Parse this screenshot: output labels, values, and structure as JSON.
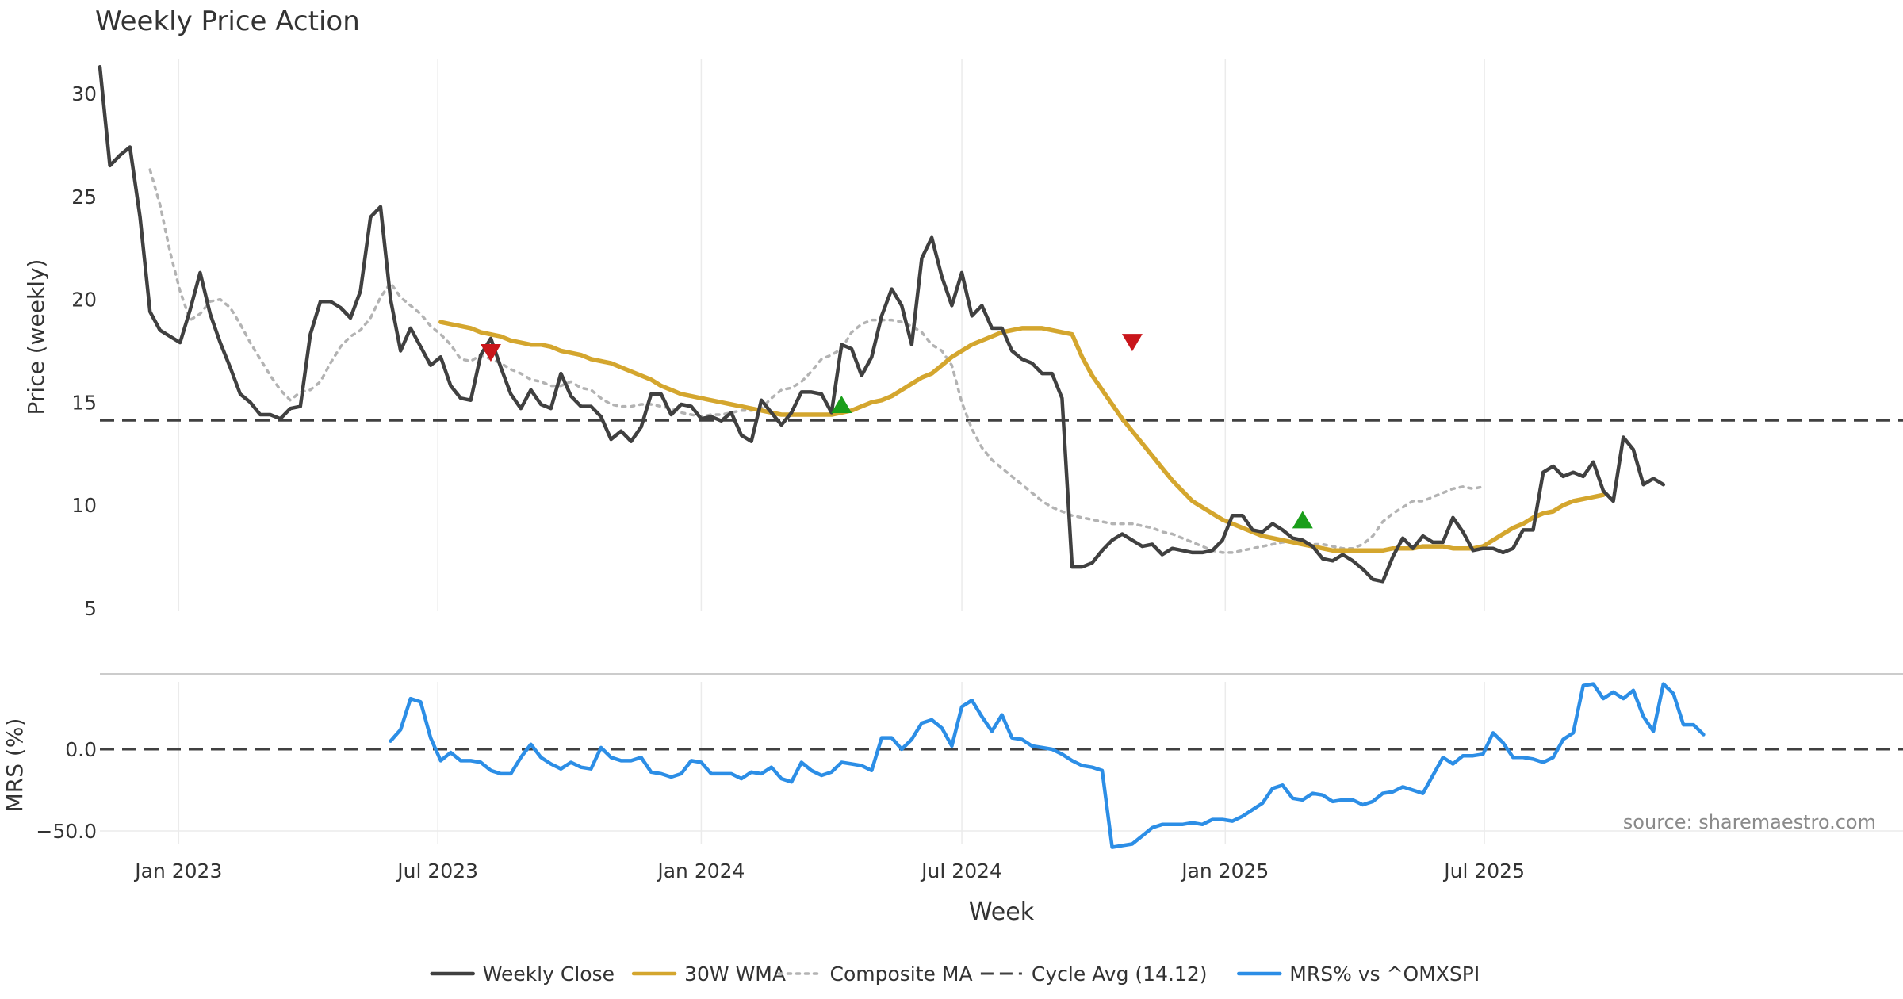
{
  "chart_data": [
    {
      "type": "line",
      "title": "Weekly Price Action",
      "xlabel": "",
      "ylabel": "Price (weekly)",
      "ylim": [
        5,
        32
      ],
      "yticks": [
        5,
        10,
        15,
        20,
        25,
        30
      ],
      "grid": "vertical",
      "x_start": "2022-11-07",
      "x_step_weeks": 1,
      "series": [
        {
          "name": "Weekly Close",
          "color": "#404040",
          "style": "solid",
          "values": [
            31.3,
            26.5,
            27.0,
            27.4,
            24.0,
            19.4,
            18.5,
            18.2,
            17.9,
            19.5,
            21.3,
            19.3,
            17.9,
            16.7,
            15.4,
            15.0,
            14.4,
            14.4,
            14.2,
            14.7,
            14.8,
            18.3,
            19.9,
            19.9,
            19.6,
            19.1,
            20.4,
            24.0,
            24.5,
            20.0,
            17.5,
            18.6,
            17.7,
            16.8,
            17.2,
            15.8,
            15.2,
            15.1,
            17.3,
            18.1,
            16.7,
            15.4,
            14.7,
            15.6,
            14.9,
            14.7,
            16.4,
            15.3,
            14.8,
            14.8,
            14.3,
            13.2,
            13.6,
            13.1,
            13.8,
            15.4,
            15.4,
            14.4,
            14.9,
            14.8,
            14.2,
            14.3,
            14.1,
            14.5,
            13.4,
            13.1,
            15.1,
            14.5,
            13.9,
            14.5,
            15.5,
            15.5,
            15.4,
            14.5,
            17.8,
            17.6,
            16.3,
            17.2,
            19.2,
            20.5,
            19.7,
            17.8,
            22.0,
            23.0,
            21.1,
            19.7,
            21.3,
            19.2,
            19.7,
            18.6,
            18.6,
            17.5,
            17.1,
            16.9,
            16.4,
            16.4,
            15.2,
            7.0,
            7.0,
            7.2,
            7.8,
            8.3,
            8.6,
            8.3,
            8.0,
            8.1,
            7.6,
            7.9,
            7.8,
            7.7,
            7.7,
            7.8,
            8.3,
            9.5,
            9.5,
            8.8,
            8.7,
            9.1,
            8.8,
            8.4,
            8.3,
            8.0,
            7.4,
            7.3,
            7.6,
            7.3,
            6.9,
            6.4,
            6.3,
            7.5,
            8.4,
            7.9,
            8.5,
            8.2,
            8.2,
            9.4,
            8.7,
            7.8,
            7.9,
            7.9,
            7.7,
            7.9,
            8.8,
            8.8,
            11.6,
            11.9,
            11.4,
            11.6,
            11.4,
            12.1,
            10.7,
            10.2,
            13.3,
            12.7,
            11.0,
            11.3,
            11.0
          ]
        },
        {
          "name": "30W WMA",
          "color": "#D4A62E",
          "style": "solid",
          "start_index": 34,
          "values": [
            18.9,
            18.8,
            18.7,
            18.6,
            18.4,
            18.3,
            18.2,
            18.0,
            17.9,
            17.8,
            17.8,
            17.7,
            17.5,
            17.4,
            17.3,
            17.1,
            17.0,
            16.9,
            16.7,
            16.5,
            16.3,
            16.1,
            15.8,
            15.6,
            15.4,
            15.3,
            15.2,
            15.1,
            15.0,
            14.9,
            14.8,
            14.7,
            14.6,
            14.5,
            14.4,
            14.4,
            14.4,
            14.4,
            14.4,
            14.4,
            14.5,
            14.6,
            14.8,
            15.0,
            15.1,
            15.3,
            15.6,
            15.9,
            16.2,
            16.4,
            16.8,
            17.2,
            17.5,
            17.8,
            18.0,
            18.2,
            18.4,
            18.5,
            18.6,
            18.6,
            18.6,
            18.5,
            18.4,
            18.3,
            17.2,
            16.3,
            15.6,
            14.9,
            14.2,
            13.6,
            13.0,
            12.4,
            11.8,
            11.2,
            10.7,
            10.2,
            9.9,
            9.6,
            9.3,
            9.1,
            8.9,
            8.7,
            8.5,
            8.4,
            8.3,
            8.2,
            8.1,
            8.0,
            7.9,
            7.8,
            7.8,
            7.8,
            7.8,
            7.8,
            7.8,
            7.9,
            7.9,
            7.9,
            8.0,
            8.0,
            8.0,
            7.9,
            7.9,
            7.9,
            8.0,
            8.3,
            8.6,
            8.9,
            9.1,
            9.4,
            9.6,
            9.7,
            10.0,
            10.2,
            10.3,
            10.4,
            10.5
          ]
        },
        {
          "name": "Composite MA",
          "color": "#B3B3B3",
          "style": "dotted",
          "start_index": 5,
          "values": [
            26.3,
            24.6,
            22.3,
            20.4,
            19.0,
            19.3,
            19.9,
            20.0,
            19.6,
            18.8,
            17.9,
            17.1,
            16.3,
            15.6,
            15.1,
            15.5,
            15.6,
            16.0,
            16.9,
            17.7,
            18.2,
            18.5,
            19.1,
            20.1,
            20.8,
            20.1,
            19.7,
            19.3,
            18.7,
            18.3,
            17.8,
            17.1,
            17.0,
            17.3,
            17.1,
            16.9,
            16.6,
            16.4,
            16.1,
            16.0,
            15.8,
            15.8,
            16.0,
            15.7,
            15.6,
            15.2,
            14.9,
            14.8,
            14.8,
            14.9,
            14.9,
            14.8,
            14.7,
            14.5,
            14.4,
            14.3,
            14.4,
            14.4,
            14.5,
            14.6,
            14.6,
            14.7,
            15.2,
            15.6,
            15.7,
            16.0,
            16.5,
            17.1,
            17.3,
            17.6,
            18.4,
            18.8,
            19.0,
            19.0,
            19.0,
            18.9,
            18.7,
            18.4,
            17.8,
            17.5,
            16.8,
            15.0,
            13.7,
            12.8,
            12.2,
            11.8,
            11.4,
            11.0,
            10.6,
            10.2,
            9.9,
            9.7,
            9.5,
            9.4,
            9.3,
            9.2,
            9.1,
            9.1,
            9.1,
            9.0,
            8.9,
            8.7,
            8.6,
            8.4,
            8.2,
            8.0,
            7.8,
            7.7,
            7.7,
            7.8,
            7.9,
            8.0,
            8.1,
            8.2,
            8.2,
            8.2,
            8.1,
            8.1,
            8.0,
            7.9,
            7.9,
            8.1,
            8.5,
            9.2,
            9.6,
            9.9,
            10.2,
            10.2,
            10.4,
            10.6,
            10.8,
            10.9,
            10.8,
            10.9
          ]
        },
        {
          "name": "Cycle Avg (14.12)",
          "color": "#404040",
          "style": "dashed",
          "constant": 14.12
        }
      ],
      "markers": [
        {
          "type": "sell",
          "shape": "triangle-down",
          "color": "#C9161B",
          "index": 39,
          "value": 17.4
        },
        {
          "type": "buy",
          "shape": "triangle-up",
          "color": "#1A9E1A",
          "index": 74,
          "value": 14.9
        },
        {
          "type": "sell",
          "shape": "triangle-down",
          "color": "#C9161B",
          "index": 103,
          "value": 17.9
        },
        {
          "type": "buy",
          "shape": "triangle-up",
          "color": "#1A9E1A",
          "index": 120,
          "value": 9.3
        }
      ]
    },
    {
      "type": "line",
      "title": "",
      "xlabel": "Week",
      "ylabel": "MRS (%)",
      "ylim": [
        -62,
        46
      ],
      "yticks": [
        0,
        -50
      ],
      "ytick_labels": [
        "0.0",
        "−50.0"
      ],
      "grid": "vertical",
      "x_start": "2022-11-07",
      "x_step_weeks": 1,
      "xtick_labels": [
        "Jan 2023",
        "Jul 2023",
        "Jan 2024",
        "Jul 2024",
        "Jan 2025",
        "Jul 2025"
      ],
      "xtick_dates": [
        "2023-01-01",
        "2023-07-01",
        "2024-01-01",
        "2024-07-01",
        "2025-01-01",
        "2025-07-01"
      ],
      "series": [
        {
          "name": "MRS% vs ^OMXSPI",
          "color": "#2C8EE6",
          "style": "solid",
          "start_index": 29,
          "values": [
            5,
            12,
            31,
            29,
            7,
            -7,
            -2,
            -7,
            -7,
            -8,
            -13,
            -15,
            -15,
            -5,
            3,
            -5,
            -9,
            -12,
            -8,
            -11,
            -12,
            1,
            -5,
            -7,
            -7,
            -5,
            -14,
            -15,
            -17,
            -15,
            -7,
            -8,
            -15,
            -15,
            -15,
            -18,
            -14,
            -15,
            -11,
            -18,
            -20,
            -8,
            -13,
            -16,
            -14,
            -8,
            -9,
            -10,
            -13,
            7,
            7,
            0,
            6,
            16,
            18,
            13,
            2,
            26,
            30,
            20,
            11,
            21,
            7,
            6,
            2,
            1,
            0,
            -3,
            -7,
            -10,
            -11,
            -13,
            -60,
            -59,
            -58,
            -53,
            -48,
            -46,
            -46,
            -46,
            -45,
            -46,
            -43,
            -43,
            -44,
            -41,
            -37,
            -33,
            -24,
            -22,
            -30,
            -31,
            -27,
            -28,
            -32,
            -31,
            -31,
            -34,
            -32,
            -27,
            -26,
            -23,
            -25,
            -27,
            -16,
            -5,
            -9,
            -4,
            -4,
            -3,
            10,
            4,
            -5,
            -5,
            -6,
            -8,
            -5,
            6,
            10,
            39,
            40,
            31,
            35,
            31,
            36,
            20,
            11,
            40,
            34,
            15,
            15,
            9
          ]
        },
        {
          "name": "zero",
          "color": "#404040",
          "style": "dashed",
          "constant": 0
        }
      ],
      "annotations": [
        "source: sharemaestro.com"
      ]
    }
  ],
  "legend": {
    "placement": "bottom-center",
    "items": [
      {
        "label": "Weekly Close",
        "color": "#404040",
        "style": "solid"
      },
      {
        "label": "30W WMA",
        "color": "#D4A62E",
        "style": "solid"
      },
      {
        "label": "Composite MA",
        "color": "#B3B3B3",
        "style": "dotted"
      },
      {
        "label": "Cycle Avg (14.12)",
        "color": "#404040",
        "style": "dashed"
      },
      {
        "label": "MRS% vs ^OMXSPI",
        "color": "#2C8EE6",
        "style": "solid"
      }
    ]
  }
}
